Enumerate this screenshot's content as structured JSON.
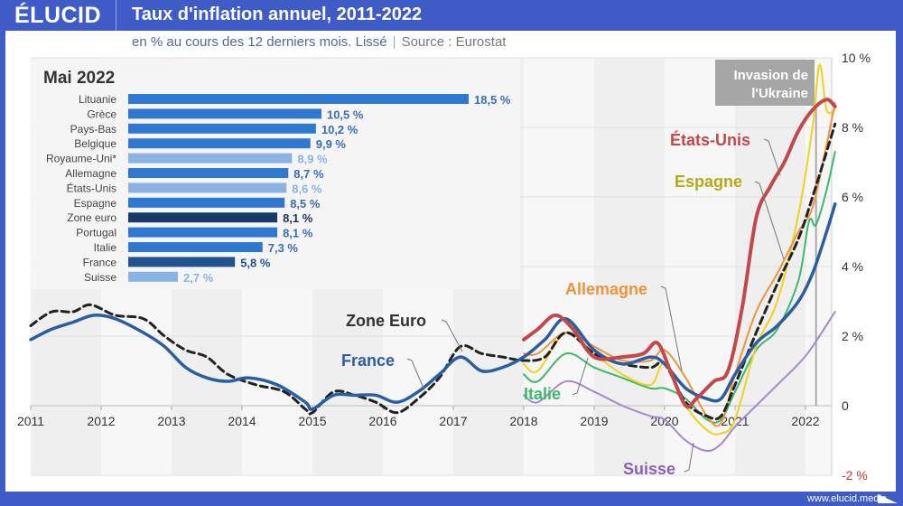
{
  "header": {
    "logo": "ÉLUCID",
    "title": "Taux d'inflation annuel, 2011-2022",
    "subtitle": "en % au cours des 12 derniers mois. Lissé",
    "source": "Source : Eurostat",
    "separator": "|"
  },
  "footer": {
    "url": "www.elucid.media"
  },
  "annotation": {
    "line1": "Invasion de",
    "line2": "l'Ukraine",
    "date": 2022.15
  },
  "chart_data": [
    {
      "type": "line",
      "title": "Taux d'inflation annuel, 2011-2022",
      "xlabel": "",
      "ylabel": "",
      "xlim": [
        2011,
        2022.42
      ],
      "ylim": [
        -2,
        10
      ],
      "x_ticks": [
        "2011",
        "2012",
        "2013",
        "2014",
        "2015",
        "2016",
        "2017",
        "2018",
        "2019",
        "2020",
        "2021",
        "2022"
      ],
      "y_ticks": [
        {
          "value": 10,
          "label": "10 %"
        },
        {
          "value": 8,
          "label": "8 %"
        },
        {
          "value": 6,
          "label": "6 %"
        },
        {
          "value": 4,
          "label": "4 %"
        },
        {
          "value": 2,
          "label": "2 %"
        },
        {
          "value": 0,
          "label": "0"
        },
        {
          "value": -2,
          "label": "-2 %"
        }
      ],
      "grid": true,
      "series": [
        {
          "name": "Suisse",
          "color": "#a589c9",
          "label": "Suisse",
          "x": [
            2018.0,
            2018.2,
            2018.6,
            2019.0,
            2019.4,
            2019.8,
            2020.0,
            2020.3,
            2020.6,
            2020.8,
            2021.0,
            2021.3,
            2021.6,
            2021.9,
            2022.1,
            2022.42
          ],
          "y": [
            0.3,
            0.1,
            0.7,
            0.4,
            0.0,
            -0.3,
            -0.4,
            -1.0,
            -1.3,
            -1.1,
            -0.6,
            0.0,
            0.6,
            1.2,
            1.7,
            2.7
          ]
        },
        {
          "name": "Italie",
          "color": "#3db86b",
          "label": "Italie",
          "x": [
            2018.0,
            2018.2,
            2018.6,
            2019.0,
            2019.4,
            2019.8,
            2020.0,
            2020.3,
            2020.6,
            2020.8,
            2021.0,
            2021.3,
            2021.6,
            2021.9,
            2022.05,
            2022.15,
            2022.3,
            2022.42
          ],
          "y": [
            0.9,
            0.7,
            1.5,
            1.1,
            0.8,
            0.5,
            0.5,
            0.2,
            -0.4,
            -0.4,
            0.4,
            1.6,
            2.2,
            3.6,
            5.3,
            5.2,
            6.2,
            7.3
          ]
        },
        {
          "name": "Espagne",
          "color": "#f0d21e",
          "label": "Espagne",
          "x": [
            2018.0,
            2018.2,
            2018.6,
            2019.0,
            2019.4,
            2019.8,
            2020.0,
            2020.3,
            2020.6,
            2020.8,
            2021.0,
            2021.3,
            2021.6,
            2021.9,
            2022.1,
            2022.2,
            2022.3,
            2022.42
          ],
          "y": [
            1.2,
            1.0,
            2.1,
            1.5,
            0.9,
            0.6,
            1.2,
            0.0,
            -0.7,
            -0.8,
            -0.4,
            1.7,
            3.0,
            5.5,
            8.0,
            9.8,
            8.5,
            8.5
          ]
        },
        {
          "name": "Allemagne",
          "color": "#f0923c",
          "label": "Allemagne",
          "x": [
            2018.0,
            2018.2,
            2018.6,
            2019.0,
            2019.4,
            2019.8,
            2020.0,
            2020.3,
            2020.6,
            2020.8,
            2021.0,
            2021.3,
            2021.6,
            2021.9,
            2022.1,
            2022.3,
            2022.42
          ],
          "y": [
            1.5,
            1.5,
            2.1,
            1.7,
            1.3,
            1.3,
            1.6,
            0.8,
            -0.3,
            -0.5,
            0.9,
            2.7,
            3.8,
            5.0,
            5.7,
            7.5,
            8.7
          ]
        },
        {
          "name": "Zone Euro",
          "color": "#222222",
          "dashed": true,
          "label": "Zone Euro",
          "x": [
            2011.0,
            2011.3,
            2011.6,
            2011.85,
            2012.2,
            2012.6,
            2012.9,
            2013.2,
            2013.5,
            2013.8,
            2014.2,
            2014.6,
            2014.9,
            2015.0,
            2015.3,
            2015.6,
            2015.9,
            2016.2,
            2016.5,
            2016.8,
            2017.1,
            2017.4,
            2017.7,
            2018.0,
            2018.3,
            2018.6,
            2019.0,
            2019.4,
            2019.8,
            2020.0,
            2020.3,
            2020.6,
            2020.8,
            2021.0,
            2021.3,
            2021.6,
            2021.9,
            2022.1,
            2022.3,
            2022.42
          ],
          "y": [
            2.3,
            2.7,
            2.7,
            2.9,
            2.6,
            2.5,
            2.0,
            1.6,
            1.4,
            0.9,
            0.6,
            0.4,
            -0.1,
            -0.2,
            0.4,
            0.3,
            0.1,
            -0.2,
            0.2,
            0.8,
            1.7,
            1.5,
            1.4,
            1.3,
            1.4,
            2.1,
            1.5,
            1.2,
            1.1,
            1.2,
            0.1,
            -0.3,
            -0.3,
            0.6,
            2.1,
            3.5,
            4.8,
            6.0,
            7.3,
            8.1
          ]
        },
        {
          "name": "France",
          "color": "#2b5ea0",
          "label": "France",
          "x": [
            2011.0,
            2011.3,
            2011.6,
            2011.9,
            2012.2,
            2012.6,
            2012.9,
            2013.2,
            2013.5,
            2013.8,
            2014.1,
            2014.5,
            2014.9,
            2015.0,
            2015.3,
            2015.6,
            2015.9,
            2016.2,
            2016.5,
            2016.8,
            2017.1,
            2017.4,
            2017.7,
            2018.0,
            2018.3,
            2018.6,
            2019.0,
            2019.4,
            2019.8,
            2020.0,
            2020.3,
            2020.6,
            2020.8,
            2021.0,
            2021.3,
            2021.6,
            2021.9,
            2022.1,
            2022.3,
            2022.42
          ],
          "y": [
            1.9,
            2.2,
            2.4,
            2.6,
            2.5,
            2.1,
            1.7,
            1.1,
            0.8,
            0.7,
            0.8,
            0.6,
            0.1,
            -0.1,
            0.3,
            0.3,
            0.3,
            0.1,
            0.4,
            0.9,
            1.4,
            1.0,
            1.1,
            1.4,
            1.9,
            2.5,
            1.6,
            1.2,
            1.4,
            1.2,
            0.5,
            0.2,
            0.2,
            0.9,
            1.8,
            2.3,
            3.0,
            3.8,
            5.0,
            5.8
          ]
        },
        {
          "name": "États-Unis",
          "color": "#c2484b",
          "label": "États-Unis",
          "x": [
            2018.0,
            2018.2,
            2018.45,
            2018.7,
            2019.0,
            2019.4,
            2019.7,
            2019.9,
            2020.1,
            2020.3,
            2020.45,
            2020.7,
            2020.9,
            2021.1,
            2021.3,
            2021.5,
            2021.7,
            2021.9,
            2022.1,
            2022.3,
            2022.42
          ],
          "y": [
            1.9,
            2.2,
            2.6,
            2.2,
            1.4,
            1.4,
            1.5,
            1.8,
            0.9,
            0.0,
            0.2,
            0.7,
            1.0,
            2.8,
            5.4,
            6.3,
            7.0,
            7.9,
            8.5,
            8.8,
            8.6
          ]
        }
      ]
    },
    {
      "type": "bar",
      "title": "Mai 2022",
      "orientation": "horizontal",
      "categories": [
        "Lituanie",
        "Grèce",
        "Pays-Bas",
        "Belgique",
        "Royaume-Uni*",
        "Allemagne",
        "États-Unis",
        "Espagne",
        "Zone euro",
        "Portugal",
        "Italie",
        "France",
        "Suisse"
      ],
      "values": [
        18.5,
        10.5,
        10.2,
        9.9,
        8.9,
        8.7,
        8.6,
        8.5,
        8.1,
        8.1,
        7.3,
        5.8,
        2.7
      ],
      "value_labels": [
        "18,5 %",
        "10,5 %",
        "10,2 %",
        "9,9 %",
        "8,9 %",
        "8,7 %",
        "8,6 %",
        "8,5 %",
        "8,1 %",
        "8,1 %",
        "7,3 %",
        "5,8 %",
        "2,7 %"
      ],
      "bar_colors": [
        "#2f78d2",
        "#2f78d2",
        "#2f78d2",
        "#2f78d2",
        "#8ab3e3",
        "#2f78d2",
        "#8ab3e3",
        "#2f78d2",
        "#183a6b",
        "#2f78d2",
        "#2f78d2",
        "#21538f",
        "#8ab3e3"
      ],
      "label_colors": [
        "#3a6db5",
        "#3a6db5",
        "#3a6db5",
        "#3a6db5",
        "#8ab3e3",
        "#3a6db5",
        "#8ab3e3",
        "#3a6db5",
        "#1b3358",
        "#3a6db5",
        "#3a6db5",
        "#21538f",
        "#8ab3e3"
      ],
      "xlim": [
        0,
        18.5
      ]
    }
  ]
}
